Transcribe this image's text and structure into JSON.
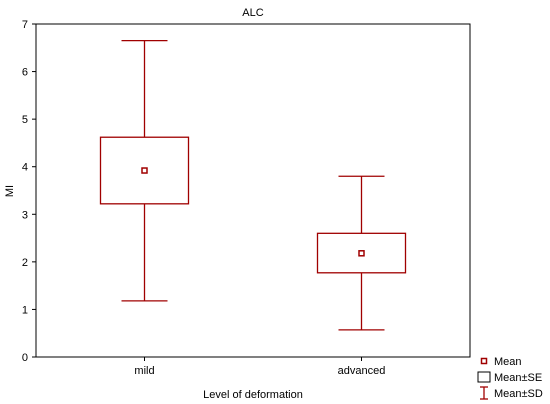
{
  "chart_data": {
    "type": "box",
    "title": "ALC",
    "xlabel": "Level of deformation",
    "ylabel": "MI",
    "ylim": [
      0,
      7
    ],
    "yticks": [
      0,
      1,
      2,
      3,
      4,
      5,
      6,
      7
    ],
    "grid": false,
    "legend_position": "bottom-right",
    "colors": {
      "series": "#a00000",
      "axis": "#000000"
    },
    "categories": [
      "mild",
      "advanced"
    ],
    "groups": [
      {
        "category": "mild",
        "mean": 3.92,
        "se_low": 3.22,
        "se_high": 4.62,
        "sd_low": 1.18,
        "sd_high": 6.65
      },
      {
        "category": "advanced",
        "mean": 2.18,
        "se_low": 1.77,
        "se_high": 2.6,
        "sd_low": 0.57,
        "sd_high": 3.8
      }
    ],
    "legend": [
      {
        "symbol": "mean-marker",
        "label": "Mean"
      },
      {
        "symbol": "box",
        "label": "Mean±SE"
      },
      {
        "symbol": "whisker",
        "label": "Mean±SD"
      }
    ]
  }
}
